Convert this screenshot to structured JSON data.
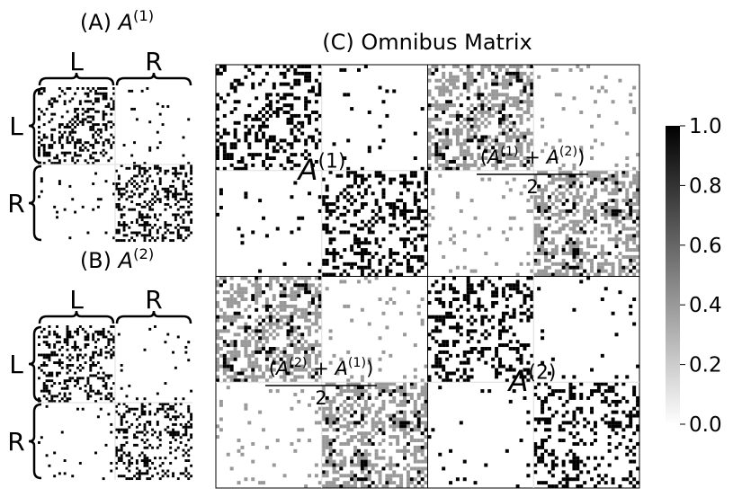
{
  "panel_a": {
    "title": {
      "prefix": "(A)",
      "symbol": "A",
      "sup": "(1)"
    },
    "columns": [
      "L",
      "R"
    ],
    "rows": [
      "L",
      "R"
    ]
  },
  "panel_b": {
    "title": {
      "prefix": "(B)",
      "symbol": "A",
      "sup": "(2)"
    },
    "columns": [
      "L",
      "R"
    ],
    "rows": [
      "L",
      "R"
    ]
  },
  "panel_c": {
    "title": "(C) Omnibus Matrix",
    "blocks": [
      {
        "symbol": "A",
        "sup": "(1)"
      },
      {
        "open": "(",
        "terms": [
          {
            "symbol": "A",
            "sup": "(1)"
          },
          {
            "symbol": "A",
            "sup": "(2)"
          }
        ],
        "operator": "+",
        "close": ")",
        "denominator": "2"
      },
      {
        "open": "(",
        "terms": [
          {
            "symbol": "A",
            "sup": "(2)"
          },
          {
            "symbol": "A",
            "sup": "(1)"
          }
        ],
        "operator": "+",
        "close": ")",
        "denominator": "2"
      },
      {
        "symbol": "A",
        "sup": "(2)"
      }
    ]
  },
  "colorbar": {
    "range": [
      0,
      1
    ],
    "ticks": [
      {
        "value": 0,
        "label": "0.0"
      },
      {
        "value": 0.2,
        "label": "0.2"
      },
      {
        "value": 0.4,
        "label": "0.4"
      },
      {
        "value": 0.6,
        "label": "0.6"
      },
      {
        "value": 0.8,
        "label": "0.8"
      },
      {
        "value": 1,
        "label": "1.0"
      }
    ]
  }
}
